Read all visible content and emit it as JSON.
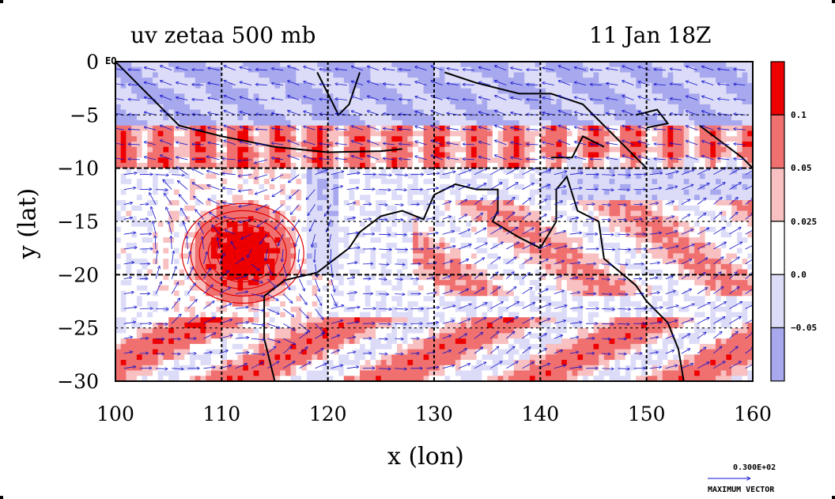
{
  "title_left": "uv zetaa 500 mb",
  "title_right": "11 Jan 18Z",
  "eq_label": "EQ",
  "max_vector": {
    "value": "0.300E+02",
    "label": "MAXIMUM VECTOR"
  },
  "chart_data": {
    "type": "heatmap",
    "xlabel": "x (lon)",
    "ylabel": "y (lat)",
    "xlim": [
      100,
      160
    ],
    "ylim": [
      -30,
      0
    ],
    "x_ticks": [
      "100",
      "110",
      "120",
      "130",
      "140",
      "150",
      "160"
    ],
    "y_ticks": [
      "0",
      "−5",
      "−10",
      "−15",
      "−20",
      "−25",
      "−30"
    ],
    "grid": true,
    "colorbar": {
      "labels": [
        "0.1",
        "0.05",
        "0.025",
        "0.0",
        "−0.05"
      ],
      "colors": [
        "#ee0000",
        "#f07070",
        "#f8c0c0",
        "#ffffff",
        "#dcdcf8",
        "#a8a8ee"
      ]
    },
    "colors": {
      "strong_pos": "#ee0000",
      "mid_pos": "#f07070",
      "light_pos": "#f8c0c0",
      "neutral": "#ffffff",
      "light_neg": "#dcdcf8",
      "strong_neg": "#a8a8ee",
      "vectors": "#1010cc",
      "contour": "#e00000",
      "coast": "#000000"
    }
  }
}
